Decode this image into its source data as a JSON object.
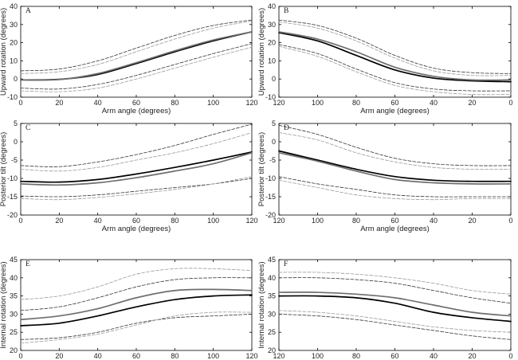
{
  "chart_data": [
    {
      "panel": "A",
      "type": "line",
      "xlabel": "Arm angle (degrees)",
      "ylabel": "Upward rotation (degrees)",
      "xlim": [
        0,
        120
      ],
      "ylim": [
        -10,
        40
      ],
      "xreverse": false,
      "xticks": [
        0,
        20,
        40,
        60,
        80,
        100,
        120
      ],
      "yticks": [
        -10,
        0,
        10,
        20,
        30,
        40
      ],
      "x": [
        0,
        20,
        40,
        60,
        80,
        100,
        120
      ],
      "series": [
        {
          "name": "mean-1",
          "style": "thick-black",
          "values": [
            -0.5,
            -0.2,
            2.5,
            8.5,
            15,
            21,
            26
          ]
        },
        {
          "name": "mean-2",
          "style": "thick-gray",
          "values": [
            -0.5,
            -0.3,
            3,
            9,
            15.5,
            21.5,
            26
          ]
        },
        {
          "name": "upper-1",
          "style": "dash-black",
          "values": [
            4.5,
            5.5,
            10,
            17,
            24,
            29.5,
            32.5
          ]
        },
        {
          "name": "upper-2",
          "style": "dash-gray",
          "values": [
            3,
            4,
            8,
            15,
            22,
            28,
            32
          ]
        },
        {
          "name": "lower-1",
          "style": "dash-black",
          "values": [
            -5,
            -5.5,
            -3,
            2,
            8,
            14,
            19.5
          ]
        },
        {
          "name": "lower-2",
          "style": "dash-gray",
          "values": [
            -6.5,
            -7,
            -5,
            0,
            6,
            12,
            17.5
          ]
        }
      ]
    },
    {
      "panel": "B",
      "type": "line",
      "xlabel": "Arm angle (degrees)",
      "ylabel": "Upward rotation (degrees)",
      "xlim": [
        0,
        120
      ],
      "ylim": [
        -10,
        40
      ],
      "xreverse": true,
      "xticks": [
        120,
        100,
        80,
        60,
        40,
        20,
        0
      ],
      "yticks": [
        -10,
        0,
        10,
        20,
        30,
        40
      ],
      "x": [
        120,
        100,
        80,
        60,
        40,
        20,
        0
      ],
      "series": [
        {
          "name": "mean-1",
          "style": "thick-black",
          "values": [
            25.5,
            21,
            13,
            5,
            0.5,
            -1,
            -1.5
          ]
        },
        {
          "name": "mean-2",
          "style": "thick-gray",
          "values": [
            26,
            22,
            15,
            6.5,
            1.5,
            -0.5,
            -0.5
          ]
        },
        {
          "name": "upper-1",
          "style": "dash-black",
          "values": [
            32.5,
            29.5,
            22.5,
            13,
            6,
            3.5,
            3
          ]
        },
        {
          "name": "upper-2",
          "style": "dash-gray",
          "values": [
            31.5,
            28,
            21,
            11.5,
            4.5,
            2,
            2
          ]
        },
        {
          "name": "lower-1",
          "style": "dash-black",
          "values": [
            19,
            14,
            5.5,
            -2,
            -5.5,
            -6.5,
            -6.5
          ]
        },
        {
          "name": "lower-2",
          "style": "dash-gray",
          "values": [
            18,
            12.5,
            4,
            -3.5,
            -7,
            -8.5,
            -8.5
          ]
        }
      ]
    },
    {
      "panel": "C",
      "type": "line",
      "xlabel": "Arm angle (degrees)",
      "ylabel": "Posterior tilt (degrees)",
      "xlim": [
        0,
        120
      ],
      "ylim": [
        -20,
        5
      ],
      "xreverse": false,
      "xticks": [
        0,
        20,
        40,
        60,
        80,
        100,
        120
      ],
      "yticks": [
        -20,
        -15,
        -10,
        -5,
        0,
        5
      ],
      "x": [
        0,
        20,
        40,
        60,
        80,
        100,
        120
      ],
      "series": [
        {
          "name": "mean-1",
          "style": "thick-black",
          "values": [
            -10.8,
            -11,
            -10.3,
            -8.8,
            -7,
            -5,
            -2.8
          ]
        },
        {
          "name": "mean-2",
          "style": "thick-gray",
          "values": [
            -11.5,
            -11.8,
            -11.2,
            -9.8,
            -8,
            -6,
            -3
          ]
        },
        {
          "name": "upper-1",
          "style": "dash-black",
          "values": [
            -6.5,
            -6.8,
            -5.5,
            -3.5,
            -1,
            2,
            4.8
          ]
        },
        {
          "name": "upper-2",
          "style": "dash-gray",
          "values": [
            -7.5,
            -8,
            -7,
            -5,
            -3,
            -0.5,
            2.5
          ]
        },
        {
          "name": "lower-1",
          "style": "dash-black",
          "values": [
            -14.8,
            -15,
            -14.5,
            -13.5,
            -12.5,
            -11.5,
            -10
          ]
        },
        {
          "name": "lower-2",
          "style": "dash-gray",
          "values": [
            -15.5,
            -15.8,
            -15.2,
            -14.2,
            -13,
            -11.5,
            -9.5
          ]
        }
      ]
    },
    {
      "panel": "D",
      "type": "line",
      "xlabel": "Arm angle (degrees)",
      "ylabel": "Posterior tilt (degrees)",
      "xlim": [
        0,
        120
      ],
      "ylim": [
        -20,
        5
      ],
      "xreverse": true,
      "xticks": [
        120,
        100,
        80,
        60,
        40,
        20,
        0
      ],
      "yticks": [
        -20,
        -15,
        -10,
        -5,
        0,
        5
      ],
      "x": [
        120,
        100,
        80,
        60,
        40,
        20,
        0
      ],
      "series": [
        {
          "name": "mean-1",
          "style": "thick-black",
          "values": [
            -2.5,
            -5,
            -7.5,
            -9.5,
            -10.5,
            -10.8,
            -10.8
          ]
        },
        {
          "name": "mean-2",
          "style": "thick-gray",
          "values": [
            -3,
            -5.3,
            -8,
            -10.3,
            -11.2,
            -11.5,
            -11.5
          ]
        },
        {
          "name": "upper-1",
          "style": "dash-black",
          "values": [
            4.5,
            2,
            -1.5,
            -4.5,
            -6,
            -6.5,
            -6.5
          ]
        },
        {
          "name": "upper-2",
          "style": "dash-gray",
          "values": [
            2.5,
            0.5,
            -3,
            -5.5,
            -7,
            -7.5,
            -7.5
          ]
        },
        {
          "name": "lower-1",
          "style": "dash-black",
          "values": [
            -9.5,
            -11.5,
            -13,
            -14.5,
            -15,
            -15,
            -15
          ]
        },
        {
          "name": "lower-2",
          "style": "dash-gray",
          "values": [
            -10.5,
            -12.5,
            -14.5,
            -15.5,
            -15.8,
            -15.5,
            -15.5
          ]
        }
      ]
    },
    {
      "panel": "E",
      "type": "line",
      "xlabel": "Arm angle (degrees)",
      "ylabel": "Internal rotation (degrees)",
      "xlim": [
        0,
        120
      ],
      "ylim": [
        20,
        45
      ],
      "xreverse": false,
      "xticks": [
        0,
        20,
        40,
        60,
        80,
        100,
        120
      ],
      "yticks": [
        20,
        25,
        30,
        35,
        40,
        45
      ],
      "x": [
        0,
        20,
        40,
        60,
        80,
        100,
        120
      ],
      "series": [
        {
          "name": "mean-1",
          "style": "thick-black",
          "values": [
            26.8,
            27.5,
            29.5,
            32,
            34,
            35,
            35.3
          ]
        },
        {
          "name": "mean-2",
          "style": "thick-gray",
          "values": [
            28.5,
            29.5,
            31.5,
            34.5,
            36.5,
            36.8,
            36.5
          ]
        },
        {
          "name": "upper-1",
          "style": "dash-black",
          "values": [
            31,
            32,
            34.5,
            37.5,
            39.5,
            40,
            40
          ]
        },
        {
          "name": "upper-2",
          "style": "dash-gray",
          "values": [
            34,
            35,
            37.5,
            41,
            42.5,
            42.5,
            42
          ]
        },
        {
          "name": "lower-1",
          "style": "dash-black",
          "values": [
            23,
            23.5,
            25,
            27.5,
            29,
            29.5,
            30
          ]
        },
        {
          "name": "lower-2",
          "style": "dash-gray",
          "values": [
            22,
            23,
            24.5,
            27,
            29.5,
            30.5,
            30.5
          ]
        }
      ]
    },
    {
      "panel": "F",
      "type": "line",
      "xlabel": "Arm angle (degrees)",
      "ylabel": "Internal rotation (degrees)",
      "xlim": [
        0,
        120
      ],
      "ylim": [
        20,
        45
      ],
      "xreverse": true,
      "xticks": [
        120,
        100,
        80,
        60,
        40,
        20,
        0
      ],
      "yticks": [
        20,
        25,
        30,
        35,
        40,
        45
      ],
      "x": [
        120,
        100,
        80,
        60,
        40,
        20,
        0
      ],
      "series": [
        {
          "name": "mean-1",
          "style": "thick-black",
          "values": [
            35,
            35,
            34.5,
            33,
            30.5,
            29,
            28
          ]
        },
        {
          "name": "mean-2",
          "style": "thick-gray",
          "values": [
            36,
            36,
            35.5,
            34.5,
            32.5,
            30.5,
            29.5
          ]
        },
        {
          "name": "upper-1",
          "style": "dash-black",
          "values": [
            40,
            40,
            39.5,
            38.5,
            36.5,
            34.5,
            33
          ]
        },
        {
          "name": "upper-2",
          "style": "dash-gray",
          "values": [
            41.5,
            41.5,
            41,
            40,
            38.5,
            36.5,
            35.5
          ]
        },
        {
          "name": "lower-1",
          "style": "dash-black",
          "values": [
            30,
            29.5,
            28.5,
            27,
            25.5,
            24,
            23
          ]
        },
        {
          "name": "lower-2",
          "style": "dash-gray",
          "values": [
            31,
            30.5,
            29.5,
            28,
            26.5,
            25.5,
            25
          ]
        }
      ]
    }
  ]
}
